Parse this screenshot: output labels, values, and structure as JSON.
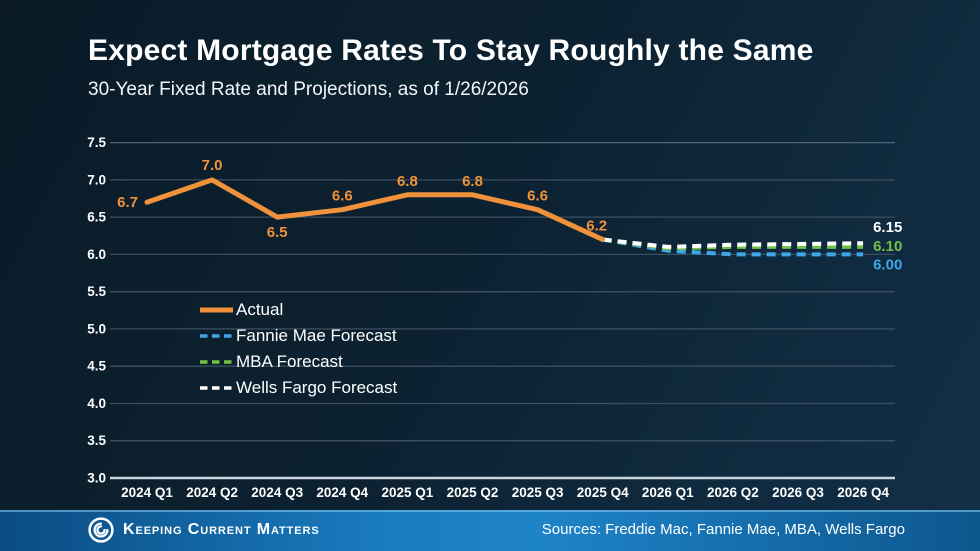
{
  "chart_data": {
    "type": "line",
    "title": "Expect Mortgage Rates To Stay Roughly the Same",
    "subtitle": "30-Year Fixed Rate and Projections, as of 1/26/2026",
    "categories": [
      "2024 Q1",
      "2024 Q2",
      "2024 Q3",
      "2024 Q4",
      "2025 Q1",
      "2025 Q2",
      "2025 Q3",
      "2025 Q4",
      "2026 Q1",
      "2026 Q2",
      "2026 Q3",
      "2026 Q4"
    ],
    "ylim": [
      3.0,
      7.5
    ],
    "ytick_labels": [
      "7.5",
      "7.0",
      "6.5",
      "6.0",
      "5.5",
      "5.0",
      "4.5",
      "4.0",
      "3.5",
      "3.0"
    ],
    "grid": true,
    "legend_position": "middle-left",
    "series": [
      {
        "name": "Actual",
        "line_style": "solid",
        "color": "#F0923C",
        "start_index": 0,
        "values": [
          6.7,
          7.0,
          6.5,
          6.6,
          6.8,
          6.8,
          6.6,
          6.2
        ],
        "point_labels": [
          "6.7",
          "7.0",
          "6.5",
          "6.6",
          "6.8",
          "6.8",
          "6.6",
          "6.2"
        ]
      },
      {
        "name": "Fannie Mae Forecast",
        "line_style": "dashed",
        "color": "#3FA7E8",
        "start_index": 7,
        "values": [
          6.2,
          6.05,
          6.0,
          6.0,
          6.0
        ],
        "end_label": "6.00"
      },
      {
        "name": "MBA Forecast",
        "line_style": "dashed",
        "color": "#72C045",
        "start_index": 7,
        "values": [
          6.2,
          6.08,
          6.1,
          6.1,
          6.1
        ],
        "end_label": "6.10"
      },
      {
        "name": "Wells Fargo Forecast",
        "line_style": "dashed",
        "color": "#FFFFFF",
        "start_index": 7,
        "values": [
          6.2,
          6.1,
          6.13,
          6.14,
          6.15
        ],
        "end_label": "6.15"
      }
    ]
  },
  "footer": {
    "brand": "Keeping Current Matters",
    "sources": "Sources: Freddie Mac, Fannie Mae, MBA, Wells Fargo",
    "bar_color": "#1E84C8"
  }
}
